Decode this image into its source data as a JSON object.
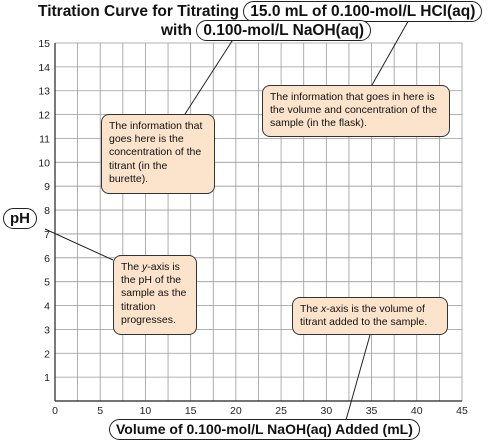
{
  "title": {
    "prefix": "Titration Curve for Titrating",
    "sample": "15.0 mL of 0.100-mol/L HCl(aq)",
    "connector": "with",
    "titrant": "0.100-mol/L NaOH(aq)"
  },
  "callouts": {
    "titrant": "The information that goes here is the concentration of the titrant (in the burette).",
    "sample": "The information that goes in here is the volume and concentration of the sample (in the flask).",
    "yaxis_pre": "The ",
    "yaxis_italic": "y",
    "yaxis_post": "-axis is the pH of the sample as the titration progresses.",
    "xaxis_pre": "The ",
    "xaxis_italic": "x",
    "xaxis_post": "-axis is the volume of titrant added to the sample."
  },
  "chart_data": {
    "type": "line",
    "title": "Titration Curve for Titrating 15.0 mL of 0.100-mol/L HCl(aq) with 0.100-mol/L NaOH(aq)",
    "xlabel": "Volume of 0.100-mol/L NaOH(aq) Added (mL)",
    "ylabel": "pH",
    "xlim": [
      0,
      45
    ],
    "ylim": [
      0,
      15
    ],
    "x_major_ticks": [
      0,
      5,
      10,
      15,
      20,
      25,
      30,
      35,
      40,
      45
    ],
    "y_major_ticks": [
      1,
      2,
      3,
      4,
      5,
      6,
      7,
      8,
      9,
      10,
      11,
      12,
      13,
      14,
      15
    ],
    "x_grid_step": 2.5,
    "y_grid_step": 1,
    "grid": true,
    "series": []
  },
  "colors": {
    "grid": "#9a9a9a",
    "axis": "#222222",
    "callout_fill": "#fbe3cc",
    "callout_border": "#333333"
  }
}
